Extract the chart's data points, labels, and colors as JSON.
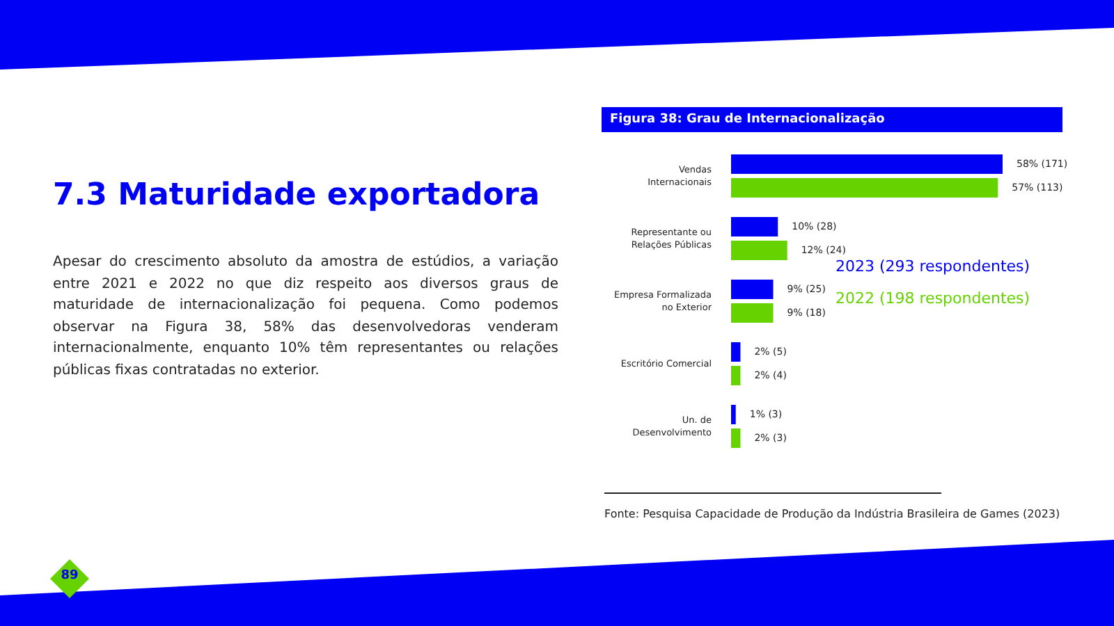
{
  "chart_data": {
    "type": "bar",
    "orientation": "horizontal",
    "title": "Figura 38: Grau de Internacionalização",
    "categories": [
      "Vendas Internacionais",
      "Representante ou Relações Públicas",
      "Empresa Formalizada no Exterior",
      "Escritório Comercial",
      "Un. de Desenvolvimento"
    ],
    "series": [
      {
        "name": "2023 (293 respondentes)",
        "color": "#0000f5",
        "values": [
          58,
          10,
          9,
          2,
          1
        ],
        "value_labels": [
          "58% (171)",
          "10% (28)",
          "9% (25)",
          "2% (5)",
          "1% (3)"
        ]
      },
      {
        "name": "2022 (198 respondentes)",
        "color": "#66d200",
        "values": [
          57,
          12,
          9,
          2,
          2
        ],
        "value_labels": [
          "57% (113)",
          "12% (24)",
          "9% (18)",
          "2% (4)",
          "2% (3)"
        ]
      }
    ],
    "legend": "right",
    "grid": false,
    "annotations": [
      "7.3 Maturidade exportadora",
      "Apesar do crescimento absoluto da amostra de estúdios, a variação entre 2021 e 2022 no que diz respeito aos diversos graus de maturidade de internacionalização foi pequena. Como podemos observar na Figura 38, 58% das desenvolvedoras venderam internacionalmente, enquanto 10% têm representantes ou relações públicas fixas contratadas no exterior.",
      "Fonte: Pesquisa Capacidade de Produção da Indústria Brasileira de Games (2023)",
      "89"
    ]
  }
}
